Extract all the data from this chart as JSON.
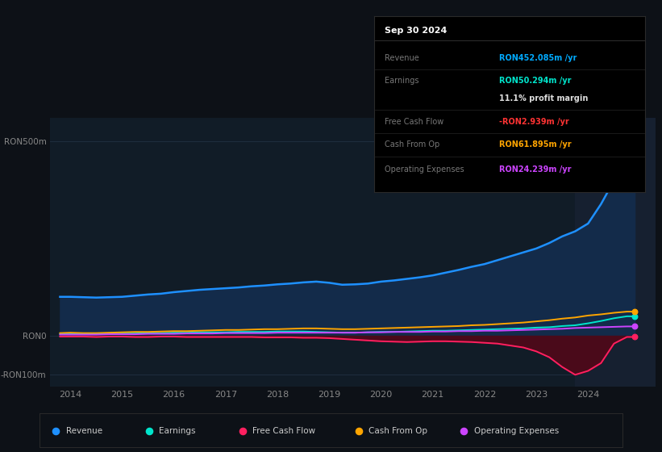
{
  "bg_color": "#0d1117",
  "panel_bg": "#111c27",
  "title": "Sep 30 2024",
  "info_box_rows": [
    {
      "label": "Revenue",
      "value": "RON452.085m /yr",
      "value_color": "#00aaff"
    },
    {
      "label": "Earnings",
      "value": "RON50.294m /yr",
      "value_color": "#00e5cc"
    },
    {
      "label": "",
      "value": "11.1% profit margin",
      "value_color": "#dddddd"
    },
    {
      "label": "Free Cash Flow",
      "value": "-RON2.939m /yr",
      "value_color": "#ff3333"
    },
    {
      "label": "Cash From Op",
      "value": "RON61.895m /yr",
      "value_color": "#ffa500"
    },
    {
      "label": "Operating Expenses",
      "value": "RON24.239m /yr",
      "value_color": "#cc44ff"
    }
  ],
  "ylim": [
    -130,
    560
  ],
  "ytick_vals": [
    -100,
    0,
    500
  ],
  "ytick_labels": [
    "-RON100m",
    "RON0",
    "RON500m"
  ],
  "xlim": [
    2013.6,
    2025.3
  ],
  "xticks": [
    2014,
    2015,
    2016,
    2017,
    2018,
    2019,
    2020,
    2021,
    2022,
    2023,
    2024
  ],
  "grid_color": "#1e2d3d",
  "revenue_color": "#1e90ff",
  "earnings_color": "#00e5cc",
  "fcf_color": "#ff2060",
  "cashfromop_color": "#ffa500",
  "opex_color": "#cc44ff",
  "revenue_fill_color": "#132b4a",
  "fcf_fill_color": "#4a0a1a",
  "highlight_color": "#162030",
  "legend_items": [
    {
      "label": "Revenue",
      "color": "#1e90ff"
    },
    {
      "label": "Earnings",
      "color": "#00e5cc"
    },
    {
      "label": "Free Cash Flow",
      "color": "#ff2060"
    },
    {
      "label": "Cash From Op",
      "color": "#ffa500"
    },
    {
      "label": "Operating Expenses",
      "color": "#cc44ff"
    }
  ],
  "years": [
    2013.8,
    2014.0,
    2014.25,
    2014.5,
    2014.75,
    2015.0,
    2015.25,
    2015.5,
    2015.75,
    2016.0,
    2016.25,
    2016.5,
    2016.75,
    2017.0,
    2017.25,
    2017.5,
    2017.75,
    2018.0,
    2018.25,
    2018.5,
    2018.75,
    2019.0,
    2019.25,
    2019.5,
    2019.75,
    2020.0,
    2020.25,
    2020.5,
    2020.75,
    2021.0,
    2021.25,
    2021.5,
    2021.75,
    2022.0,
    2022.25,
    2022.5,
    2022.75,
    2023.0,
    2023.25,
    2023.5,
    2023.75,
    2024.0,
    2024.25,
    2024.5,
    2024.75,
    2024.9
  ],
  "revenue": [
    100,
    100,
    99,
    98,
    99,
    100,
    103,
    106,
    108,
    112,
    115,
    118,
    120,
    122,
    124,
    127,
    129,
    132,
    134,
    137,
    139,
    136,
    131,
    132,
    134,
    139,
    142,
    146,
    150,
    155,
    162,
    169,
    177,
    184,
    194,
    204,
    214,
    224,
    238,
    255,
    268,
    288,
    338,
    398,
    450,
    452
  ],
  "earnings": [
    5,
    5,
    5,
    4,
    5,
    6,
    6,
    7,
    7,
    8,
    8,
    9,
    9,
    9,
    10,
    10,
    10,
    11,
    11,
    11,
    10,
    9,
    8,
    8,
    9,
    10,
    10,
    11,
    12,
    13,
    13,
    14,
    15,
    16,
    17,
    18,
    19,
    21,
    22,
    25,
    27,
    32,
    38,
    45,
    50,
    50
  ],
  "fcf": [
    -2,
    -2,
    -2,
    -3,
    -2,
    -2,
    -3,
    -3,
    -2,
    -2,
    -3,
    -3,
    -3,
    -3,
    -3,
    -3,
    -4,
    -4,
    -4,
    -5,
    -5,
    -6,
    -8,
    -10,
    -12,
    -14,
    -15,
    -16,
    -15,
    -14,
    -14,
    -15,
    -16,
    -18,
    -20,
    -25,
    -30,
    -40,
    -55,
    -80,
    -100,
    -90,
    -70,
    -20,
    -3,
    -3
  ],
  "cashfromop": [
    7,
    8,
    7,
    7,
    8,
    9,
    10,
    10,
    11,
    12,
    12,
    13,
    14,
    15,
    15,
    16,
    17,
    17,
    18,
    19,
    19,
    18,
    17,
    17,
    18,
    19,
    20,
    21,
    22,
    23,
    24,
    25,
    27,
    28,
    30,
    32,
    34,
    37,
    40,
    44,
    47,
    52,
    55,
    59,
    62,
    62
  ],
  "opex": [
    3,
    3,
    3,
    3,
    4,
    4,
    4,
    5,
    5,
    5,
    6,
    6,
    6,
    7,
    7,
    7,
    7,
    8,
    8,
    8,
    8,
    8,
    8,
    8,
    9,
    9,
    10,
    10,
    10,
    11,
    11,
    12,
    12,
    13,
    13,
    14,
    15,
    16,
    17,
    18,
    20,
    21,
    22,
    23,
    24,
    24
  ]
}
